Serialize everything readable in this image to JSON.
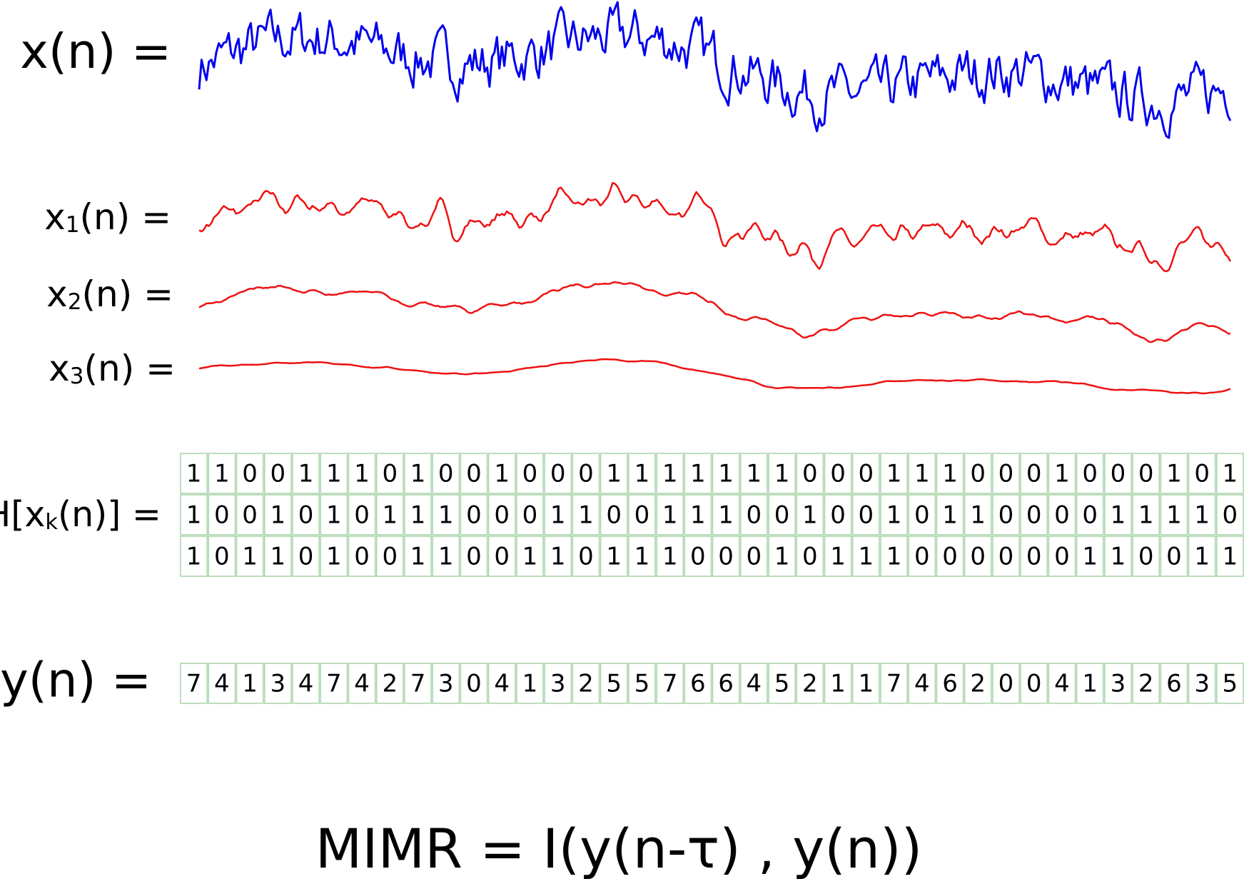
{
  "signals": [
    {
      "label": {
        "base": "x",
        "sub": "",
        "rest": "(n) ="
      }
    },
    {
      "label": {
        "base": "x",
        "sub": "1",
        "rest": "(n) ="
      }
    },
    {
      "label": {
        "base": "x",
        "sub": "2",
        "rest": "(n) ="
      }
    },
    {
      "label": {
        "base": "x",
        "sub": "3",
        "rest": "(n) ="
      }
    }
  ],
  "h_table": {
    "label": {
      "base": "H[x",
      "sub": "k",
      "rest": "(n)] ="
    },
    "rows": [
      [
        1,
        1,
        0,
        0,
        1,
        1,
        1,
        0,
        1,
        0,
        0,
        1,
        0,
        0,
        0,
        1,
        1,
        1,
        1,
        1,
        1,
        1,
        0,
        0,
        0,
        1,
        1,
        1,
        0,
        0,
        0,
        1,
        0,
        0,
        0,
        1,
        0,
        1
      ],
      [
        1,
        0,
        0,
        1,
        0,
        1,
        0,
        1,
        1,
        1,
        0,
        0,
        0,
        1,
        1,
        0,
        0,
        1,
        1,
        1,
        0,
        0,
        1,
        0,
        0,
        1,
        0,
        1,
        1,
        0,
        0,
        0,
        0,
        1,
        1,
        1,
        1,
        0
      ],
      [
        1,
        0,
        1,
        1,
        0,
        1,
        0,
        0,
        1,
        1,
        0,
        0,
        1,
        1,
        0,
        1,
        1,
        1,
        0,
        0,
        0,
        1,
        0,
        1,
        1,
        1,
        0,
        0,
        0,
        0,
        0,
        0,
        1,
        1,
        0,
        0,
        1,
        1
      ]
    ]
  },
  "y_table": {
    "label": "y(n) =",
    "values": [
      7,
      4,
      1,
      3,
      4,
      7,
      4,
      2,
      7,
      3,
      0,
      4,
      1,
      3,
      2,
      5,
      5,
      7,
      6,
      6,
      4,
      5,
      2,
      1,
      1,
      7,
      4,
      6,
      2,
      0,
      0,
      4,
      1,
      3,
      2,
      6,
      3,
      5
    ]
  },
  "formula": "MIMR = I(y(n-τ) , y(n))"
}
